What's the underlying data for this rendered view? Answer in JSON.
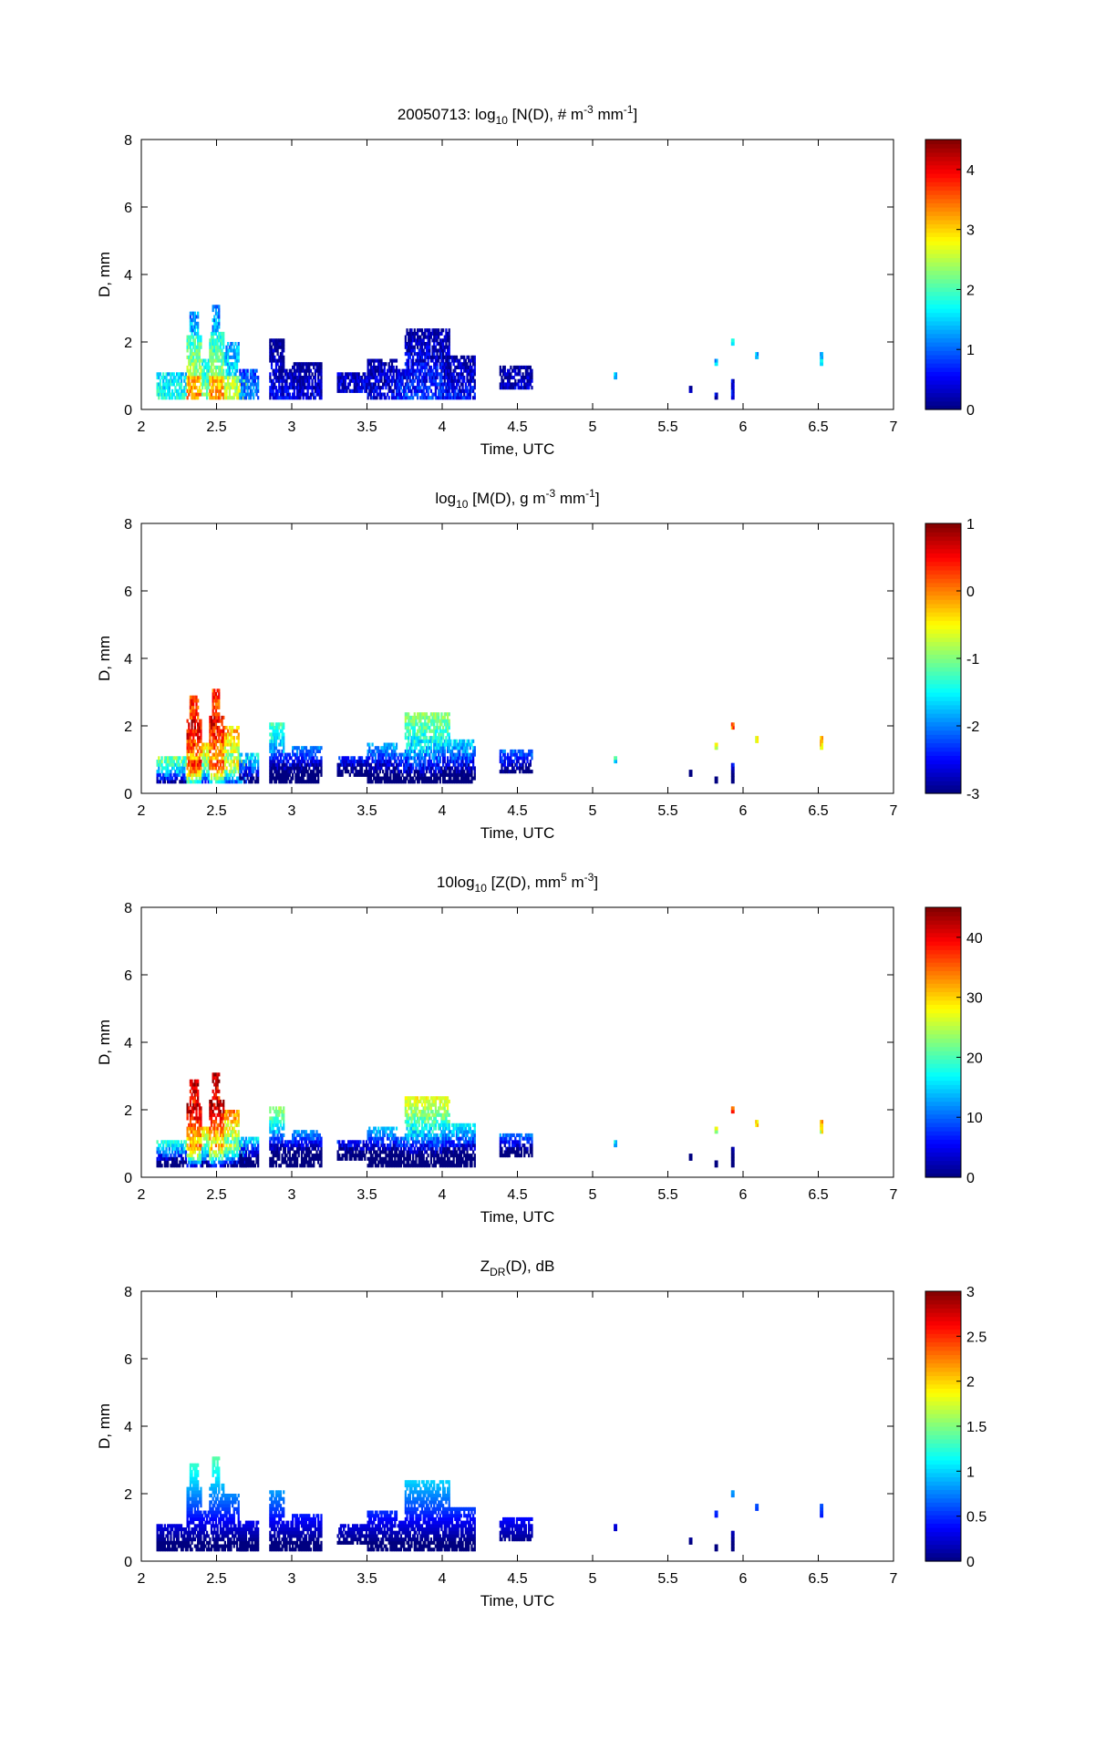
{
  "figure": {
    "date": "20050713"
  },
  "chart_data": [
    {
      "type": "heatmap",
      "title_parts": [
        "20050713: log",
        "10",
        " [N(D), # m",
        "-3",
        " mm",
        "-1",
        "]"
      ],
      "xlabel": "Time, UTC",
      "ylabel": "D, mm",
      "xlim": [
        2,
        7
      ],
      "ylim": [
        0,
        8
      ],
      "xticks": [
        "2",
        "2.5",
        "3",
        "3.5",
        "4",
        "4.5",
        "5",
        "5.5",
        "6",
        "6.5",
        "7"
      ],
      "yticks": [
        "0",
        "2",
        "4",
        "6",
        "8"
      ],
      "colorbar": {
        "min": 0,
        "max": 4.5,
        "ticks": [
          "0",
          "1",
          "2",
          "3",
          "4"
        ],
        "tick_values": [
          0,
          1,
          2,
          3,
          4
        ]
      },
      "field": "N"
    },
    {
      "type": "heatmap",
      "title_parts": [
        "log",
        "10",
        " [M(D), g m",
        "-3",
        " mm",
        "-1",
        "]"
      ],
      "xlabel": "Time, UTC",
      "ylabel": "D, mm",
      "xlim": [
        2,
        7
      ],
      "ylim": [
        0,
        8
      ],
      "xticks": [
        "2",
        "2.5",
        "3",
        "3.5",
        "4",
        "4.5",
        "5",
        "5.5",
        "6",
        "6.5",
        "7"
      ],
      "yticks": [
        "0",
        "2",
        "4",
        "6",
        "8"
      ],
      "colorbar": {
        "min": -3,
        "max": 1,
        "ticks": [
          "-3",
          "-2",
          "-1",
          "0",
          "1"
        ],
        "tick_values": [
          -3,
          -2,
          -1,
          0,
          1
        ]
      },
      "field": "M"
    },
    {
      "type": "heatmap",
      "title_parts": [
        "10log",
        "10",
        " [Z(D),  mm",
        "5",
        " m",
        "-3",
        "]"
      ],
      "xlabel": "Time, UTC",
      "ylabel": "D, mm",
      "xlim": [
        2,
        7
      ],
      "ylim": [
        0,
        8
      ],
      "xticks": [
        "2",
        "2.5",
        "3",
        "3.5",
        "4",
        "4.5",
        "5",
        "5.5",
        "6",
        "6.5",
        "7"
      ],
      "yticks": [
        "0",
        "2",
        "4",
        "6",
        "8"
      ],
      "colorbar": {
        "min": 0,
        "max": 45,
        "ticks": [
          "0",
          "10",
          "20",
          "30",
          "40"
        ],
        "tick_values": [
          0,
          10,
          20,
          30,
          40
        ]
      },
      "field": "Z"
    },
    {
      "type": "heatmap",
      "title_parts": [
        "Z",
        "DR",
        "(D), dB"
      ],
      "xlabel": "Time, UTC",
      "ylabel": "D, mm",
      "xlim": [
        2,
        7
      ],
      "ylim": [
        0,
        8
      ],
      "xticks": [
        "2",
        "2.5",
        "3",
        "3.5",
        "4",
        "4.5",
        "5",
        "5.5",
        "6",
        "6.5",
        "7"
      ],
      "yticks": [
        "0",
        "2",
        "4",
        "6",
        "8"
      ],
      "colorbar": {
        "min": 0,
        "max": 3,
        "ticks": [
          "0",
          "0.5",
          "1",
          "1.5",
          "2",
          "2.5",
          "3"
        ],
        "tick_values": [
          0,
          0.5,
          1,
          1.5,
          2,
          2.5,
          3
        ]
      },
      "field": "ZDR"
    }
  ],
  "cells": [
    {
      "t": [
        2.1,
        2.3
      ],
      "d": [
        0.3,
        1.1
      ],
      "n": 1.8
    },
    {
      "t": [
        2.3,
        2.4
      ],
      "d": [
        0.3,
        1.0
      ],
      "n": 3.4
    },
    {
      "t": [
        2.3,
        2.4
      ],
      "d": [
        1.0,
        2.2
      ],
      "n": 2.4
    },
    {
      "t": [
        2.32,
        2.38
      ],
      "d": [
        2.2,
        2.9
      ],
      "n": 1.4
    },
    {
      "t": [
        2.4,
        2.45
      ],
      "d": [
        0.3,
        1.5
      ],
      "n": 2.2
    },
    {
      "t": [
        2.45,
        2.55
      ],
      "d": [
        0.3,
        1.0
      ],
      "n": 3.3
    },
    {
      "t": [
        2.45,
        2.55
      ],
      "d": [
        1.0,
        2.3
      ],
      "n": 2.3
    },
    {
      "t": [
        2.47,
        2.52
      ],
      "d": [
        2.3,
        3.1
      ],
      "n": 1.3
    },
    {
      "t": [
        2.55,
        2.7
      ],
      "d": [
        0.3,
        1.0
      ],
      "n": 2.6
    },
    {
      "t": [
        2.55,
        2.65
      ],
      "d": [
        1.0,
        2.0
      ],
      "n": 1.6
    },
    {
      "t": [
        2.65,
        2.78
      ],
      "d": [
        0.3,
        1.2
      ],
      "n": 1.2
    },
    {
      "t": [
        2.85,
        3.0
      ],
      "d": [
        0.3,
        1.2
      ],
      "n": 0.5
    },
    {
      "t": [
        2.85,
        2.95
      ],
      "d": [
        1.2,
        2.1
      ],
      "n": 0.3
    },
    {
      "t": [
        3.0,
        3.2
      ],
      "d": [
        0.3,
        1.4
      ],
      "n": 0.4
    },
    {
      "t": [
        3.3,
        3.5
      ],
      "d": [
        0.5,
        1.1
      ],
      "n": 0.4
    },
    {
      "t": [
        3.5,
        3.7
      ],
      "d": [
        0.3,
        1.5
      ],
      "n": 0.5
    },
    {
      "t": [
        3.7,
        4.0
      ],
      "d": [
        0.3,
        1.2
      ],
      "n": 0.8
    },
    {
      "t": [
        3.75,
        4.05
      ],
      "d": [
        1.2,
        2.4
      ],
      "n": 0.5
    },
    {
      "t": [
        4.0,
        4.22
      ],
      "d": [
        0.3,
        1.6
      ],
      "n": 0.6
    },
    {
      "t": [
        4.38,
        4.6
      ],
      "d": [
        0.6,
        1.3
      ],
      "n": 0.3
    },
    {
      "t": [
        5.14,
        5.16
      ],
      "d": [
        0.9,
        1.1
      ],
      "n": 1.3
    },
    {
      "t": [
        5.64,
        5.66
      ],
      "d": [
        0.5,
        0.7
      ],
      "n": 0.3
    },
    {
      "t": [
        5.81,
        5.83
      ],
      "d": [
        0.3,
        0.5
      ],
      "n": 0.4
    },
    {
      "t": [
        5.81,
        5.83
      ],
      "d": [
        1.3,
        1.5
      ],
      "n": 1.4
    },
    {
      "t": [
        5.92,
        5.94
      ],
      "d": [
        0.3,
        0.9
      ],
      "n": 0.6
    },
    {
      "t": [
        5.92,
        5.94
      ],
      "d": [
        1.9,
        2.1
      ],
      "n": 1.6
    },
    {
      "t": [
        6.08,
        6.1
      ],
      "d": [
        1.5,
        1.7
      ],
      "n": 1.5
    },
    {
      "t": [
        6.51,
        6.53
      ],
      "d": [
        1.3,
        1.7
      ],
      "n": 1.6
    }
  ]
}
